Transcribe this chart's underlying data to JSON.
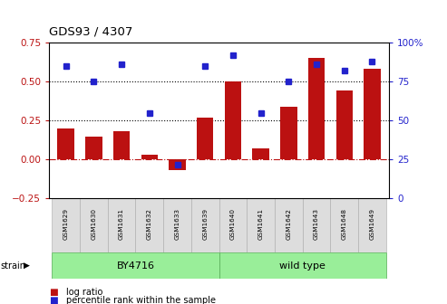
{
  "title": "GDS93 / 4307",
  "samples": [
    "GSM1629",
    "GSM1630",
    "GSM1631",
    "GSM1632",
    "GSM1633",
    "GSM1639",
    "GSM1640",
    "GSM1641",
    "GSM1642",
    "GSM1643",
    "GSM1648",
    "GSM1649"
  ],
  "log_ratio": [
    0.2,
    0.15,
    0.18,
    0.03,
    -0.07,
    0.27,
    0.5,
    0.07,
    0.34,
    0.65,
    0.44,
    0.58
  ],
  "percentile_pct": [
    85,
    75,
    86,
    55,
    22,
    85,
    92,
    55,
    75,
    86,
    82,
    88
  ],
  "bar_color": "#bb1111",
  "dot_color": "#2222cc",
  "strain_labels": [
    "BY4716",
    "wild type"
  ],
  "strain_split": 6,
  "strain_color": "#99ee99",
  "ylabel_left": "",
  "ylabel_right": "",
  "ylim_left": [
    -0.25,
    0.75
  ],
  "ylim_right": [
    0,
    100
  ],
  "yticks_left": [
    -0.25,
    0.0,
    0.25,
    0.5,
    0.75
  ],
  "yticks_right": [
    0,
    25,
    50,
    75,
    100
  ],
  "hlines": [
    0.25,
    0.5
  ],
  "zero_line": 0.0,
  "bg_color": "#ffffff",
  "legend_log": "log ratio",
  "legend_pct": "percentile rank within the sample"
}
